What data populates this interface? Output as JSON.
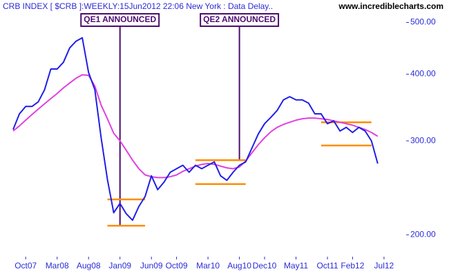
{
  "chart_data": {
    "type": "line",
    "title": "CRB INDEX [ $CRB ]:WEEKLY:15Jun2012 22:06 New York : Data Delay..",
    "source": "www.incrediblecharts.com",
    "log_scale": true,
    "ylim": [
      182,
      519
    ],
    "yticks": [
      {
        "value": 200,
        "label": "200.00"
      },
      {
        "value": 300,
        "label": "300.00"
      },
      {
        "value": 400,
        "label": "400.00"
      },
      {
        "value": 500,
        "label": "500.00"
      }
    ],
    "xticks": [
      {
        "value": "2007-10",
        "label": "Oct07"
      },
      {
        "value": "2008-03",
        "label": "Mar08"
      },
      {
        "value": "2008-08",
        "label": "Aug08"
      },
      {
        "value": "2009-01",
        "label": "Jan09"
      },
      {
        "value": "2009-06",
        "label": "Jun09"
      },
      {
        "value": "2009-10",
        "label": "Oct09"
      },
      {
        "value": "2010-03",
        "label": "Mar10"
      },
      {
        "value": "2010-08",
        "label": "Aug10"
      },
      {
        "value": "2010-12",
        "label": "Dec10"
      },
      {
        "value": "2011-05",
        "label": "May11"
      },
      {
        "value": "2011-10",
        "label": "Oct11"
      },
      {
        "value": "2012-02",
        "label": "Feb12"
      },
      {
        "value": "2012-07",
        "label": "Jul12"
      }
    ],
    "x": [
      "2007-08",
      "2007-09",
      "2007-10",
      "2007-11",
      "2007-12",
      "2008-01",
      "2008-02",
      "2008-03",
      "2008-04",
      "2008-05",
      "2008-06",
      "2008-07",
      "2008-08",
      "2008-09",
      "2008-10",
      "2008-11",
      "2008-12",
      "2009-01",
      "2009-02",
      "2009-03",
      "2009-04",
      "2009-05",
      "2009-06",
      "2009-07",
      "2009-08",
      "2009-09",
      "2009-10",
      "2009-11",
      "2009-12",
      "2010-01",
      "2010-02",
      "2010-03",
      "2010-04",
      "2010-05",
      "2010-06",
      "2010-07",
      "2010-08",
      "2010-09",
      "2010-10",
      "2010-11",
      "2010-12",
      "2011-01",
      "2011-02",
      "2011-03",
      "2011-04",
      "2011-05",
      "2011-06",
      "2011-07",
      "2011-08",
      "2011-09",
      "2011-10",
      "2011-11",
      "2011-12",
      "2012-01",
      "2012-02",
      "2012-03",
      "2012-04",
      "2012-05",
      "2012-06"
    ],
    "series": [
      {
        "color": "#1f1fe6",
        "values": [
          315,
          337,
          348,
          348,
          355,
          374,
          409,
          409,
          421,
          448,
          461,
          468,
          403,
          374,
          304,
          254,
          220,
          229,
          219,
          213,
          226,
          236,
          258,
          243,
          251,
          262,
          266,
          270,
          262,
          270,
          266,
          270,
          274,
          258,
          253,
          262,
          270,
          274,
          291,
          309,
          323,
          332,
          342,
          358,
          363,
          358,
          358,
          353,
          337,
          337,
          323,
          327,
          313,
          318,
          311,
          318,
          313,
          300,
          272
        ]
      },
      {
        "color": "#e040e0",
        "values": [
          313,
          320,
          328,
          336,
          344,
          352,
          360,
          368,
          377,
          385,
          393,
          399,
          398,
          380,
          350,
          330,
          310,
          300,
          288,
          276,
          266,
          259,
          257,
          256,
          256,
          257,
          259,
          263,
          266,
          269,
          271,
          272,
          271,
          269,
          267,
          266,
          268,
          275,
          285,
          295,
          304,
          312,
          318,
          322,
          325,
          328,
          330,
          331,
          331,
          330,
          329,
          327,
          325,
          323,
          321,
          318,
          315,
          311,
          306
        ]
      }
    ],
    "levels": [
      {
        "value": 233,
        "start": "2008-11",
        "end": "2009-05"
      },
      {
        "value": 208,
        "start": "2008-11",
        "end": "2009-05"
      },
      {
        "value": 276,
        "start": "2010-01",
        "end": "2010-09"
      },
      {
        "value": 249,
        "start": "2010-01",
        "end": "2010-09"
      },
      {
        "value": 325,
        "start": "2011-09",
        "end": "2012-05"
      },
      {
        "value": 294,
        "start": "2011-09",
        "end": "2012-05"
      }
    ],
    "level_color": "#ff8c00",
    "annotations": [
      {
        "label": "QE1 ANNOUNCED",
        "x": "2009-01",
        "to": 208
      },
      {
        "label": "QE2 ANNOUNCED",
        "x": "2010-08",
        "to": 276
      }
    ]
  }
}
